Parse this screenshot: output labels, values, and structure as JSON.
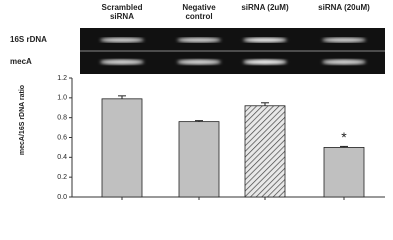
{
  "chart_data": {
    "type": "bar",
    "categories": [
      "Scrambled siRNA",
      "Negative control",
      "siRNA (2uM)",
      "siRNA (20uM)"
    ],
    "gel_rows": [
      "16S rDNA",
      "mecA"
    ],
    "y_label": "mecA/16S rDNA ratio",
    "values": [
      0.99,
      0.76,
      0.92,
      0.5
    ],
    "errors": [
      0.03,
      0.01,
      0.03,
      0.01
    ],
    "fills": [
      "#c0c0c0",
      "#c0c0c0",
      "hatch",
      "#c0c0c0"
    ],
    "annotations": [
      null,
      null,
      null,
      "*"
    ],
    "ylim": [
      0,
      1.2
    ],
    "yticks": [
      {
        "value": 0,
        "label": "0.0"
      },
      {
        "value": 0.2,
        "label": "0.2"
      },
      {
        "value": 0.4,
        "label": "0.4"
      },
      {
        "value": 0.6,
        "label": "0.6"
      },
      {
        "value": 0.8,
        "label": "0.8"
      },
      {
        "value": 1,
        "label": "1.0"
      },
      {
        "value": 1.2,
        "label": "1.2"
      }
    ]
  }
}
